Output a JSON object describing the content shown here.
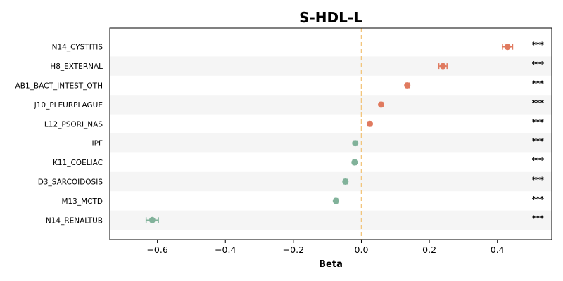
{
  "chart_data": {
    "type": "scatter",
    "title": "S-HDL-L",
    "xlabel": "Beta",
    "ylabel": "",
    "xlim": [
      -0.74,
      0.56
    ],
    "x_ticks": [
      -0.6,
      -0.4,
      -0.2,
      0.0,
      0.2,
      0.4
    ],
    "x_tick_labels": [
      "−0.6",
      "−0.4",
      "−0.2",
      "0.0",
      "0.2",
      "0.4"
    ],
    "reference_line": 0.0,
    "positive_color": "#e07a5f",
    "negative_color": "#81b29a",
    "reference_color": "#f2c57c",
    "stripe_color": "#f5f5f5",
    "points": [
      {
        "label": "N14_CYSTITIS",
        "beta": 0.43,
        "err": 0.015,
        "sig": "***"
      },
      {
        "label": "H8_EXTERNAL",
        "beta": 0.24,
        "err": 0.012,
        "sig": "***"
      },
      {
        "label": "AB1_BACT_INTEST_OTH",
        "beta": 0.135,
        "err": 0.006,
        "sig": "***"
      },
      {
        "label": "J10_PLEURPLAGUE",
        "beta": 0.058,
        "err": 0.005,
        "sig": "***"
      },
      {
        "label": "L12_PSORI_NAS",
        "beta": 0.025,
        "err": 0.005,
        "sig": "***"
      },
      {
        "label": "IPF",
        "beta": -0.018,
        "err": 0.005,
        "sig": "***"
      },
      {
        "label": "K11_COELIAC",
        "beta": -0.02,
        "err": 0.005,
        "sig": "***"
      },
      {
        "label": "D3_SARCOIDOSIS",
        "beta": -0.047,
        "err": 0.005,
        "sig": "***"
      },
      {
        "label": "M13_MCTD",
        "beta": -0.075,
        "err": 0.005,
        "sig": "***"
      },
      {
        "label": "N14_RENALTUB",
        "beta": -0.615,
        "err": 0.018,
        "sig": "***"
      }
    ]
  }
}
